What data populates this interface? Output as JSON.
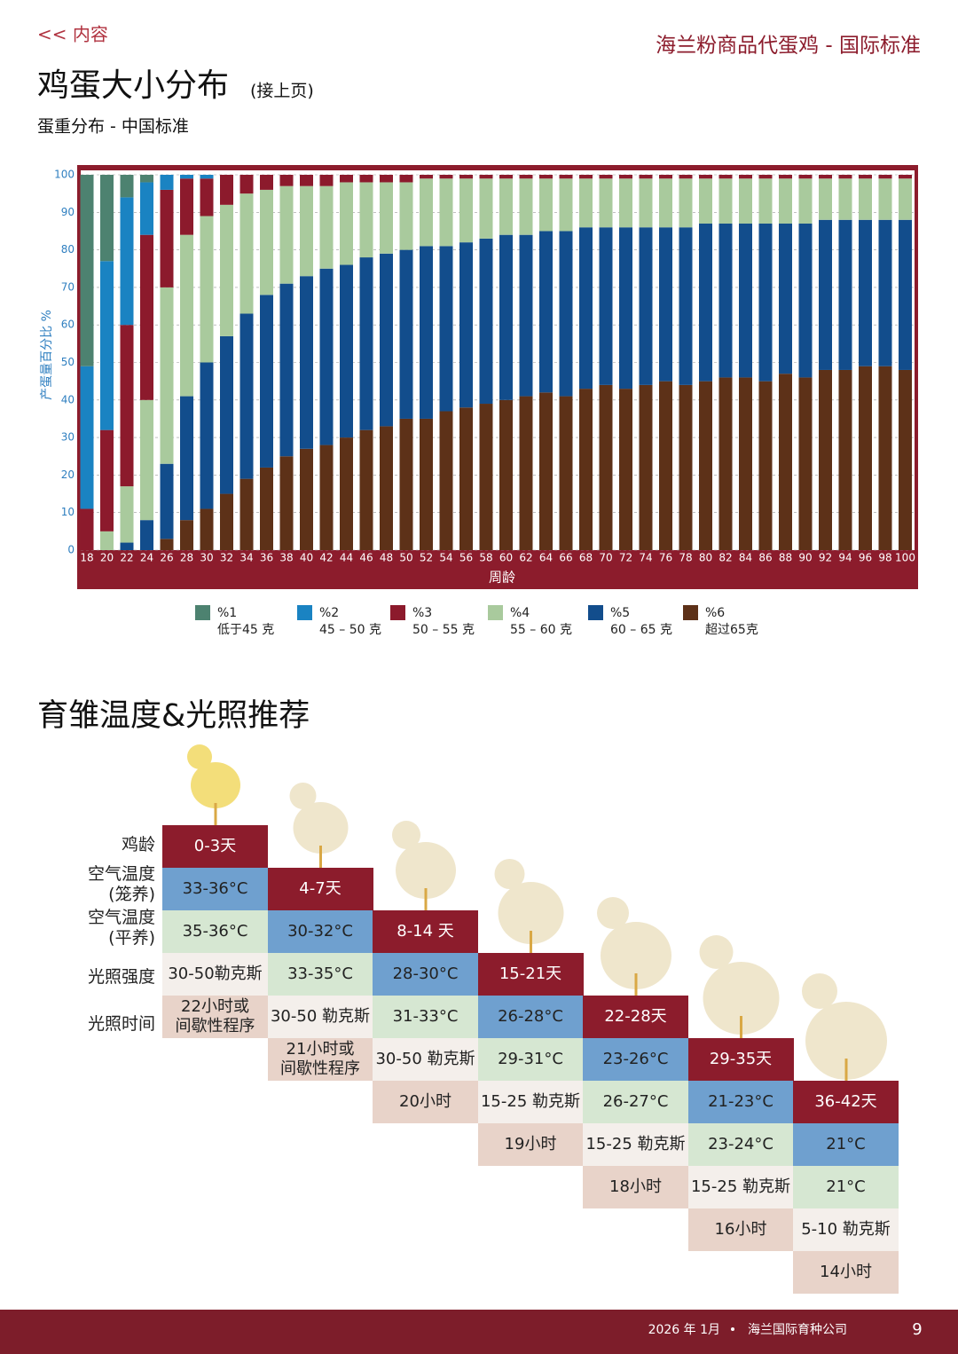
{
  "header": {
    "back_link": "<< 内容",
    "doc_title": "海兰粉商品代蛋鸡 - 国际标准"
  },
  "chart_data": {
    "type": "bar",
    "stacked": true,
    "title": "鸡蛋大小分布",
    "title_note": "(接上页)",
    "subtitle": "蛋重分布 - 中国标准",
    "x_label": "周龄",
    "y_label": "产蛋量百分比 %",
    "grid": true,
    "legend": "bottom",
    "categories": [
      18,
      20,
      22,
      24,
      26,
      28,
      30,
      32,
      34,
      36,
      38,
      40,
      42,
      44,
      46,
      48,
      50,
      52,
      54,
      56,
      58,
      60,
      62,
      64,
      66,
      68,
      70,
      72,
      74,
      76,
      78,
      80,
      82,
      84,
      86,
      88,
      90,
      92,
      94,
      96,
      98,
      100
    ],
    "ylim": [
      0,
      100
    ],
    "yticks": [
      0,
      10,
      20,
      30,
      40,
      50,
      60,
      70,
      80,
      90,
      100
    ],
    "series": [
      {
        "name": "%1",
        "label": "低于45 克",
        "color": "#4d8270",
        "values": [
          51,
          23,
          6,
          2,
          0,
          0,
          0,
          0,
          0,
          0,
          0,
          0,
          0,
          0,
          0,
          0,
          0,
          0,
          0,
          0,
          0,
          0,
          0,
          0,
          0,
          0,
          0,
          0,
          0,
          0,
          0,
          0,
          0,
          0,
          0,
          0,
          0,
          0,
          0,
          0,
          0,
          0
        ]
      },
      {
        "name": "%2",
        "label": "45 – 50 克",
        "color": "#1a83c2",
        "values": [
          38,
          45,
          34,
          14,
          4,
          1,
          1,
          0,
          0,
          0,
          0,
          0,
          0,
          0,
          0,
          0,
          0,
          0,
          0,
          0,
          0,
          0,
          0,
          0,
          0,
          0,
          0,
          0,
          0,
          0,
          0,
          0,
          0,
          0,
          0,
          0,
          0,
          0,
          0,
          0,
          0,
          0
        ]
      },
      {
        "name": "%3",
        "label": "50 – 55 克",
        "color": "#8c1a2c",
        "values": [
          11,
          27,
          43,
          44,
          26,
          15,
          10,
          8,
          5,
          4,
          3,
          3,
          3,
          2,
          2,
          2,
          2,
          1,
          1,
          1,
          1,
          1,
          1,
          1,
          1,
          1,
          1,
          1,
          1,
          1,
          1,
          1,
          1,
          1,
          1,
          1,
          1,
          1,
          1,
          1,
          1,
          1
        ]
      },
      {
        "name": "%4",
        "label": "55 – 60 克",
        "color": "#a9ca9d",
        "values": [
          0,
          5,
          15,
          32,
          47,
          43,
          39,
          35,
          32,
          28,
          26,
          24,
          22,
          22,
          20,
          19,
          18,
          18,
          18,
          17,
          16,
          15,
          15,
          14,
          14,
          13,
          13,
          13,
          13,
          13,
          13,
          12,
          12,
          12,
          12,
          12,
          12,
          11,
          11,
          11,
          11,
          11
        ]
      },
      {
        "name": "%5",
        "label": "60 – 65 克",
        "color": "#124d8c",
        "values": [
          0,
          0,
          2,
          8,
          20,
          33,
          39,
          42,
          44,
          46,
          46,
          46,
          47,
          46,
          46,
          46,
          45,
          46,
          44,
          44,
          44,
          44,
          43,
          43,
          44,
          43,
          42,
          43,
          42,
          41,
          42,
          42,
          41,
          41,
          42,
          40,
          41,
          40,
          40,
          39,
          39,
          40
        ]
      },
      {
        "name": "%6",
        "label": "超过65克",
        "color": "#5d3118",
        "values": [
          0,
          0,
          0,
          0,
          3,
          8,
          11,
          15,
          19,
          22,
          25,
          27,
          28,
          30,
          32,
          33,
          35,
          35,
          37,
          38,
          39,
          40,
          41,
          42,
          41,
          43,
          44,
          43,
          44,
          45,
          44,
          45,
          46,
          46,
          45,
          47,
          46,
          48,
          48,
          49,
          49,
          48
        ]
      }
    ]
  },
  "brooding_table": {
    "title": "育雏温度&光照推荐",
    "row_labels": [
      "鸡龄",
      "空气温度\n(笼养)",
      "空气温度\n(平养)",
      "光照强度",
      "光照时间"
    ],
    "columns": [
      [
        "0-3天",
        "33-36°C",
        "35-36°C",
        "30-50勒克斯",
        "22小时或\n间歇性程序"
      ],
      [
        "4-7天",
        "30-32°C",
        "33-35°C",
        "30-50 勒克斯",
        "21小时或\n间歇性程序"
      ],
      [
        "8-14 天",
        "28-30°C",
        "31-33°C",
        "30-50 勒克斯",
        "20小时"
      ],
      [
        "15-21天",
        "26-28°C",
        "29-31°C",
        "15-25 勒克斯",
        "19小时"
      ],
      [
        "22-28天",
        "23-26°C",
        "26-27°C",
        "15-25 勒克斯",
        "18小时"
      ],
      [
        "29-35天",
        "21-23°C",
        "23-24°C",
        "15-25 勒克斯",
        "16小时"
      ],
      [
        "36-42天",
        "21°C",
        "21°C",
        "5-10 勒克斯",
        "14小时"
      ]
    ]
  },
  "footer": {
    "date": "2026 年 1月",
    "company": "海兰国际育种公司",
    "page": "9"
  }
}
